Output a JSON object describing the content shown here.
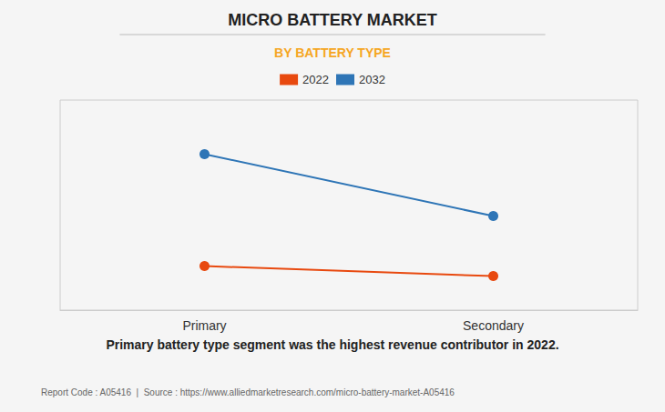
{
  "chart_data": {
    "type": "line",
    "title": "MICRO BATTERY MARKET",
    "subtitle": "BY BATTERY TYPE",
    "subtitle_color": "#F5A623",
    "annotations": [
      "Primary battery type segment was the highest revenue contributor in 2022.",
      "Report Code : A05416  |  Source : https://www.alliedmarketresearch.com/micro-battery-market-A05416"
    ],
    "categories": [
      "Primary",
      "Secondary"
    ],
    "series": [
      {
        "name": "2022",
        "color": "#E8490F",
        "marker": "circle",
        "values": [
          0.22,
          0.17
        ]
      },
      {
        "name": "2032",
        "color": "#2E75B6",
        "marker": "circle",
        "values": [
          0.78,
          0.47
        ]
      }
    ],
    "ylim": [
      0.0,
      1.05
    ],
    "grid": false,
    "tick_labels": "x",
    "legend": "top"
  }
}
